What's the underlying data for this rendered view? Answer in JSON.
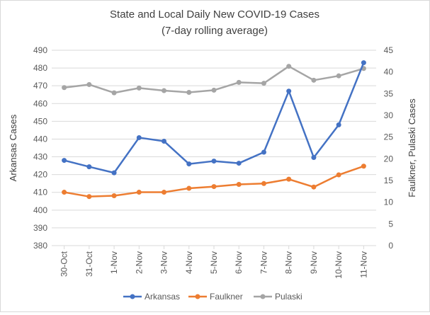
{
  "chart_data": {
    "type": "line",
    "title": "State and Local Daily New COVID-19 Cases",
    "subtitle": "(7-day rolling average)",
    "ylabel": "Arkansas Cases",
    "y2label": "Faulkner, Pulaski Cases",
    "ylim": [
      380,
      490
    ],
    "yticks": [
      "380",
      "390",
      "400",
      "410",
      "420",
      "430",
      "440",
      "450",
      "460",
      "470",
      "480",
      "490"
    ],
    "y2lim": [
      0,
      45
    ],
    "y2ticks": [
      "0",
      "5",
      "10",
      "15",
      "20",
      "25",
      "30",
      "35",
      "40",
      "45"
    ],
    "grid": true,
    "legend_position": "bottom",
    "categories": [
      "30-Oct",
      "31-Oct",
      "1-Nov",
      "2-Nov",
      "3-Nov",
      "4-Nov",
      "5-Nov",
      "6-Nov",
      "7-Nov",
      "8-Nov",
      "9-Nov",
      "10-Nov",
      "11-Nov"
    ],
    "series": [
      {
        "name": "Arkansas",
        "axis": "left",
        "color": "#4472c4",
        "values": [
          428,
          424.4,
          421,
          440.8,
          438.8,
          426,
          427.6,
          426.4,
          432.6,
          467,
          429.6,
          448,
          483
        ]
      },
      {
        "name": "Faulkner",
        "axis": "right",
        "color": "#ed7d31",
        "values": [
          12.3,
          11.3,
          11.5,
          12.3,
          12.3,
          13.2,
          13.6,
          14.1,
          14.3,
          15.3,
          13.5,
          16.3,
          18.3
        ]
      },
      {
        "name": "Pulaski",
        "axis": "right",
        "color": "#a5a5a5",
        "values": [
          36.4,
          37.1,
          35.2,
          36.3,
          35.7,
          35.3,
          35.8,
          37.6,
          37.4,
          41.3,
          38.1,
          39.1,
          40.8
        ]
      }
    ]
  }
}
